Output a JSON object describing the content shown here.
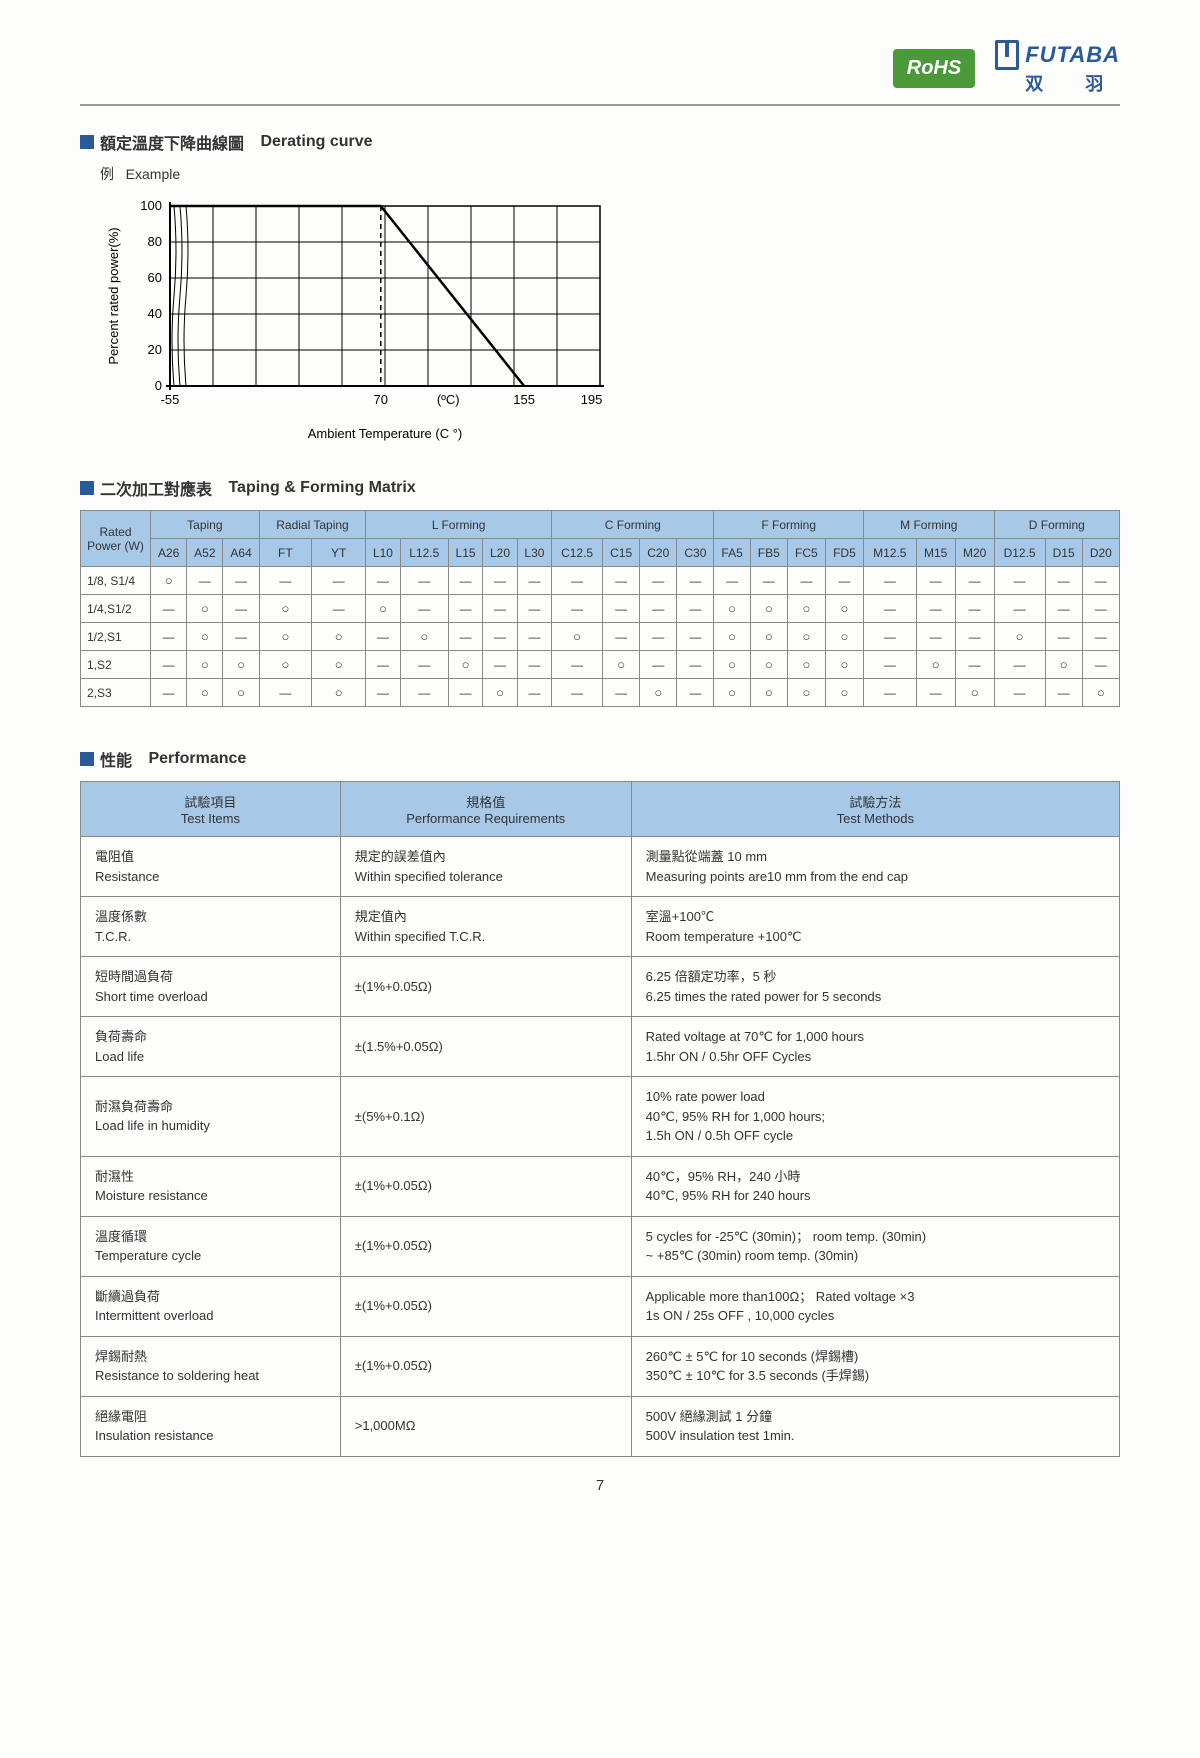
{
  "header": {
    "rohs": "RoHS",
    "brand": "FUTABA",
    "brand_sub": "双　羽"
  },
  "section1": {
    "title_zh": "額定溫度下降曲線圖",
    "title_en": "Derating curve",
    "example_zh": "例",
    "example_en": "Example",
    "chart": {
      "type": "line",
      "y_label": "Percent rated power(%)",
      "x_label": "Ambient Temperature (C °)",
      "x_unit": "(ºC)",
      "y_ticks": [
        0,
        20,
        40,
        60,
        80,
        100
      ],
      "x_ticks": [
        -55,
        70,
        155,
        195
      ],
      "ylim": [
        0,
        100
      ],
      "xlim": [
        -55,
        200
      ],
      "line_points": [
        [
          -55,
          100
        ],
        [
          70,
          100
        ],
        [
          155,
          0
        ]
      ],
      "dashed_x": 70,
      "line_color": "#000000",
      "grid_color": "#000000",
      "background": "#fdfdfc",
      "label_fontsize": 13
    }
  },
  "section2": {
    "title_zh": "二次加工對應表",
    "title_en": "Taping & Forming Matrix",
    "col_group_labels": [
      "Rated Power (W)",
      "Taping",
      "Radial Taping",
      "L  Forming",
      "C  Forming",
      "F  Forming",
      "M  Forming",
      "D  Forming"
    ],
    "col_group_spans": [
      1,
      3,
      2,
      5,
      4,
      4,
      3,
      3
    ],
    "sub_cols": [
      "A26",
      "A52",
      "A64",
      "FT",
      "YT",
      "L10",
      "L12.5",
      "L15",
      "L20",
      "L30",
      "C12.5",
      "C15",
      "C20",
      "C30",
      "FA5",
      "FB5",
      "FC5",
      "FD5",
      "M12.5",
      "M15",
      "M20",
      "D12.5",
      "D15",
      "D20"
    ],
    "row_labels": [
      "1/8, S1/4",
      "1/4,S1/2",
      "1/2,S1",
      "1,S2",
      "2,S3"
    ],
    "cells": [
      [
        "○",
        "—",
        "—",
        "—",
        "—",
        "—",
        "—",
        "—",
        "—",
        "—",
        "—",
        "—",
        "—",
        "—",
        "—",
        "—",
        "—",
        "—",
        "—",
        "—",
        "—",
        "—",
        "—",
        "—"
      ],
      [
        "—",
        "○",
        "—",
        "○",
        "—",
        "○",
        "—",
        "—",
        "—",
        "—",
        "—",
        "—",
        "—",
        "—",
        "○",
        "○",
        "○",
        "○",
        "—",
        "—",
        "—",
        "—",
        "—",
        "—"
      ],
      [
        "—",
        "○",
        "—",
        "○",
        "○",
        "—",
        "○",
        "—",
        "—",
        "—",
        "○",
        "—",
        "—",
        "—",
        "○",
        "○",
        "○",
        "○",
        "—",
        "—",
        "—",
        "○",
        "—",
        "—"
      ],
      [
        "—",
        "○",
        "○",
        "○",
        "○",
        "—",
        "—",
        "○",
        "—",
        "—",
        "—",
        "○",
        "—",
        "—",
        "○",
        "○",
        "○",
        "○",
        "—",
        "○",
        "—",
        "—",
        "○",
        "—"
      ],
      [
        "—",
        "○",
        "○",
        "—",
        "○",
        "—",
        "—",
        "—",
        "○",
        "—",
        "—",
        "—",
        "○",
        "—",
        "○",
        "○",
        "○",
        "○",
        "—",
        "—",
        "○",
        "—",
        "—",
        "○"
      ]
    ]
  },
  "section3": {
    "title_zh": "性能",
    "title_en": "Performance",
    "headers": [
      {
        "zh": "試驗項目",
        "en": "Test Items"
      },
      {
        "zh": "規格值",
        "en": "Performance Requirements"
      },
      {
        "zh": "試驗方法",
        "en": "Test Methods"
      }
    ],
    "rows": [
      {
        "item_zh": "電阻值",
        "item_en": "Resistance",
        "req_zh": "規定的誤差值內",
        "req_en": "Within specified tolerance",
        "method_zh": "測量點從端蓋 10 mm",
        "method_en": "Measuring points are10 mm from the end cap"
      },
      {
        "item_zh": "溫度係數",
        "item_en": "T.C.R.",
        "req_zh": "規定值內",
        "req_en": "Within specified T.C.R.",
        "method_zh": "室溫+100℃",
        "method_en": "Room temperature +100℃"
      },
      {
        "item_zh": "短時間過負荷",
        "item_en": "Short time overload",
        "req_zh": "",
        "req_en": "±(1%+0.05Ω)",
        "method_zh": "6.25 倍額定功率，5 秒",
        "method_en": "6.25 times the rated power for 5 seconds"
      },
      {
        "item_zh": "負荷壽命",
        "item_en": "Load life",
        "req_zh": "",
        "req_en": "±(1.5%+0.05Ω)",
        "method_zh": "Rated voltage at 70℃ for 1,000 hours",
        "method_en": "1.5hr ON / 0.5hr OFF Cycles"
      },
      {
        "item_zh": "耐濕負荷壽命",
        "item_en": "Load life in humidity",
        "req_zh": "",
        "req_en": "±(5%+0.1Ω)",
        "method_zh": "10% rate power load\n40℃, 95% RH for 1,000 hours;",
        "method_en": "1.5h ON / 0.5h OFF cycle"
      },
      {
        "item_zh": "耐濕性",
        "item_en": "Moisture resistance",
        "req_zh": "",
        "req_en": "±(1%+0.05Ω)",
        "method_zh": "40℃，95% RH，240 小時",
        "method_en": "40℃, 95% RH for 240 hours"
      },
      {
        "item_zh": "溫度循環",
        "item_en": "Temperature cycle",
        "req_zh": "",
        "req_en": "±(1%+0.05Ω)",
        "method_zh": "5 cycles for -25℃ (30min)； room temp. (30min)",
        "method_en": "~ +85℃ (30min) room temp. (30min)"
      },
      {
        "item_zh": "斷續過負荷",
        "item_en": "Intermittent overload",
        "req_zh": "",
        "req_en": "±(1%+0.05Ω)",
        "method_zh": "Applicable more than100Ω； Rated voltage ×3",
        "method_en": "1s ON / 25s OFF , 10,000 cycles"
      },
      {
        "item_zh": "焊錫耐熱",
        "item_en": "Resistance to soldering heat",
        "req_zh": "",
        "req_en": "±(1%+0.05Ω)",
        "method_zh": "260℃ ± 5℃ for 10 seconds (焊錫槽)",
        "method_en": "350℃ ± 10℃ for 3.5 seconds (手焊錫)"
      },
      {
        "item_zh": "絕緣電阻",
        "item_en": "Insulation resistance",
        "req_zh": "",
        "req_en": ">1,000MΩ",
        "method_zh": "500V 絕緣測試 1 分鐘",
        "method_en": "500V insulation test 1min."
      }
    ]
  },
  "page_number": "7"
}
